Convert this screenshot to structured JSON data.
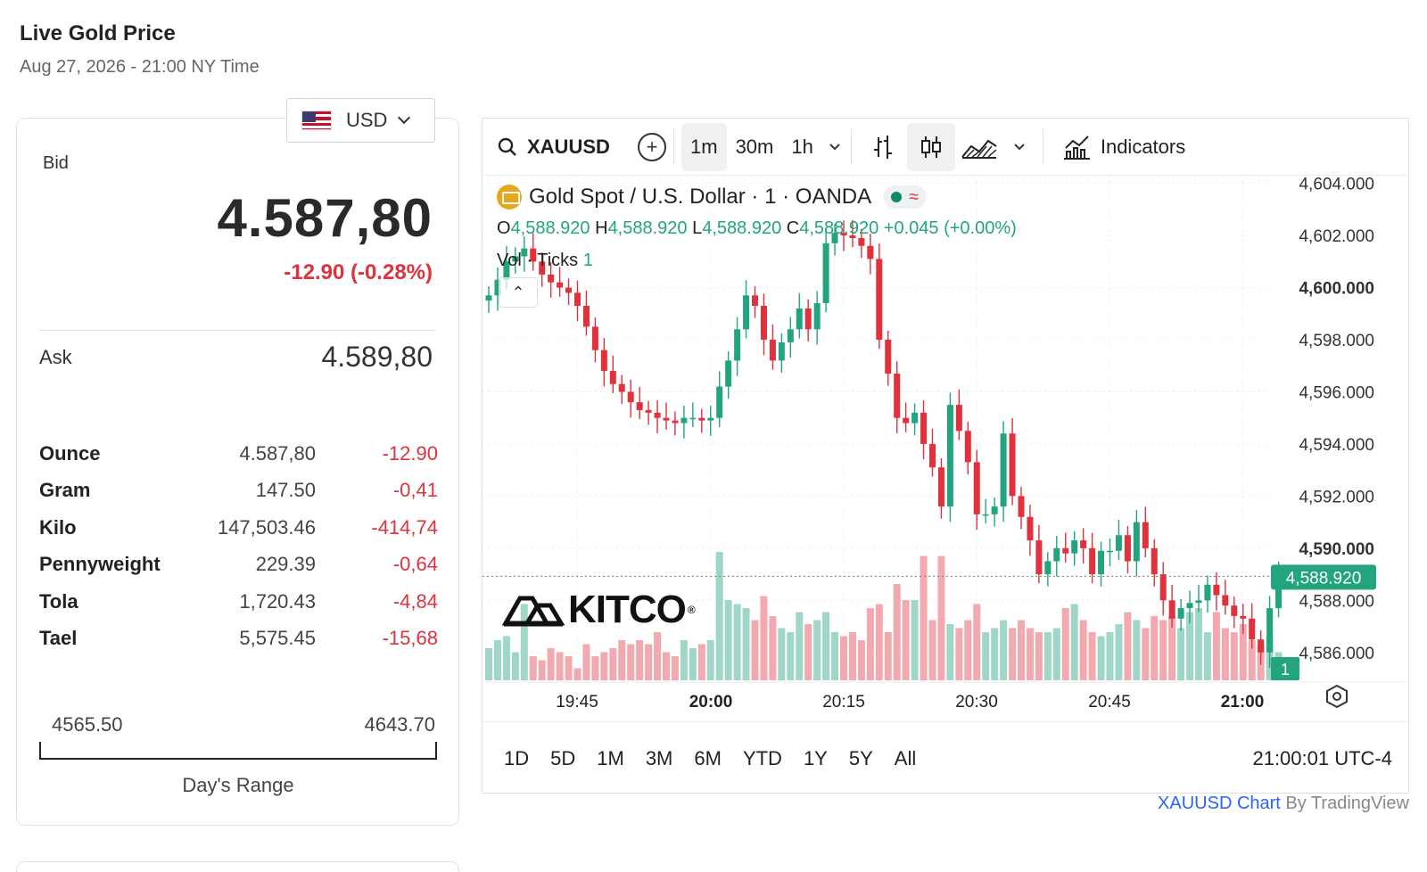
{
  "header": {
    "title": "Live Gold Price",
    "subtitle": "Aug 27, 2026 - 21:00 NY Time"
  },
  "currency": {
    "selected": "USD",
    "icon": "us-flag-icon"
  },
  "price_panel": {
    "bid_label": "Bid",
    "bid_value": "4.587,80",
    "bid_change": "-12.90 (-0.28%)",
    "ask_label": "Ask",
    "ask_value": "4.589,80",
    "units": [
      {
        "name": "Ounce",
        "price": "4.587,80",
        "change": "-12.90"
      },
      {
        "name": "Gram",
        "price": "147.50",
        "change": "-0,41"
      },
      {
        "name": "Kilo",
        "price": "147,503.46",
        "change": "-414,74"
      },
      {
        "name": "Pennyweight",
        "price": "229.39",
        "change": "-0,64"
      },
      {
        "name": "Tola",
        "price": "1,720.43",
        "change": "-4,84"
      },
      {
        "name": "Tael",
        "price": "5,575.45",
        "change": "-15,68"
      }
    ],
    "day_range": {
      "low": "4565.50",
      "high": "4643.70",
      "label": "Day's Range"
    }
  },
  "chart_widget": {
    "toolbar": {
      "symbol": "XAUUSD",
      "intervals": [
        "1m",
        "30m",
        "1h"
      ],
      "active_interval": "1m",
      "indicators_label": "Indicators"
    },
    "legend": {
      "title": "Gold Spot / U.S. Dollar · 1 · OANDA",
      "o_label": "O",
      "o": "4,588.920",
      "h_label": "H",
      "h": "4,588.920",
      "l_label": "L",
      "l": "4,588.920",
      "c_label": "C",
      "c": "4,588.920",
      "change": "+0.045 (+0.00%)",
      "vol_label": "Vol · Ticks",
      "vol_value": "1"
    },
    "watermark": "KITCO",
    "ranges": [
      "1D",
      "5D",
      "1M",
      "3M",
      "6M",
      "YTD",
      "1Y",
      "5Y",
      "All"
    ],
    "clock": "21:00:01 UTC-4",
    "colors": {
      "up": "#22a57e",
      "down": "#e0313c",
      "vol_up": "#9fd6c8",
      "vol_down": "#f2aab0"
    }
  },
  "chart_data": {
    "type": "candlestick",
    "title": "Gold Spot / U.S. Dollar · 1 · OANDA",
    "ylim": [
      4585,
      4604.5
    ],
    "yticks": [
      "4,604.000",
      "4,602.000",
      "4,600.000",
      "4,598.000",
      "4,596.000",
      "4,594.000",
      "4,592.000",
      "4,590.000",
      "4,588.000",
      "4,586.000"
    ],
    "ytick_values": [
      4604,
      4602,
      4600,
      4598,
      4596,
      4594,
      4592,
      4590,
      4588,
      4586
    ],
    "bold_yticks": [
      "4,600.000",
      "4,590.000"
    ],
    "xticks": [
      "19:45",
      "20:00",
      "20:15",
      "20:30",
      "20:45",
      "21:00"
    ],
    "bold_xticks": [
      "20:00",
      "21:00"
    ],
    "last_price_label": "4,588.920",
    "last_price": 4588.92,
    "volume_label": "1",
    "closes": [
      4599.7,
      4600.3,
      4601.0,
      4601.2,
      4601.5,
      4601.0,
      4600.5,
      4600.2,
      4600.0,
      4599.8,
      4599.3,
      4598.5,
      4597.6,
      4596.8,
      4596.3,
      4596.0,
      4595.6,
      4595.3,
      4595.2,
      4595.0,
      4594.9,
      4594.8,
      4595.0,
      4595.0,
      4594.9,
      4595.0,
      4596.2,
      4597.2,
      4598.4,
      4599.7,
      4599.3,
      4598.0,
      4597.2,
      4597.9,
      4598.4,
      4599.2,
      4598.4,
      4599.4,
      4601.7,
      4602.1,
      4602.0,
      4601.9,
      4601.6,
      4601.1,
      4598.0,
      4596.7,
      4595.0,
      4594.8,
      4595.2,
      4594.0,
      4593.1,
      4591.6,
      4595.5,
      4594.5,
      4593.3,
      4591.3,
      4591.3,
      4591.6,
      4594.4,
      4592.0,
      4591.2,
      4590.3,
      4589.0,
      4589.5,
      4590.0,
      4589.8,
      4590.3,
      4590.0,
      4589.0,
      4589.9,
      4589.9,
      4590.5,
      4589.5,
      4591.0,
      4590.0,
      4589.0,
      4588.0,
      4587.3,
      4587.7,
      4587.9,
      4588.0,
      4588.6,
      4588.2,
      4587.8,
      4587.4,
      4587.3,
      4586.5,
      4586.0,
      4587.7,
      4588.9
    ],
    "volumes": [
      0.4,
      0.5,
      0.55,
      0.35,
      0.95,
      0.3,
      0.25,
      0.4,
      0.35,
      0.3,
      0.15,
      0.45,
      0.3,
      0.35,
      0.4,
      0.5,
      0.45,
      0.5,
      0.45,
      0.6,
      0.35,
      0.3,
      0.5,
      0.4,
      0.45,
      0.5,
      1.6,
      1.0,
      0.95,
      0.9,
      0.75,
      1.05,
      0.8,
      0.65,
      0.6,
      0.85,
      0.7,
      0.75,
      0.85,
      0.6,
      0.55,
      0.6,
      0.5,
      0.9,
      0.95,
      0.6,
      1.2,
      1.0,
      1.0,
      1.55,
      0.75,
      1.55,
      0.7,
      0.65,
      0.75,
      0.95,
      0.6,
      0.65,
      0.75,
      0.65,
      0.75,
      0.65,
      0.6,
      0.6,
      0.65,
      0.9,
      0.95,
      0.75,
      0.6,
      0.55,
      0.6,
      0.7,
      0.85,
      0.75,
      0.65,
      0.8,
      0.75,
      0.8,
      0.65,
      0.85,
      0.9,
      0.6,
      0.85,
      0.65,
      0.6,
      0.7,
      0.5,
      0.45,
      0.55,
      0.35
    ]
  }
}
